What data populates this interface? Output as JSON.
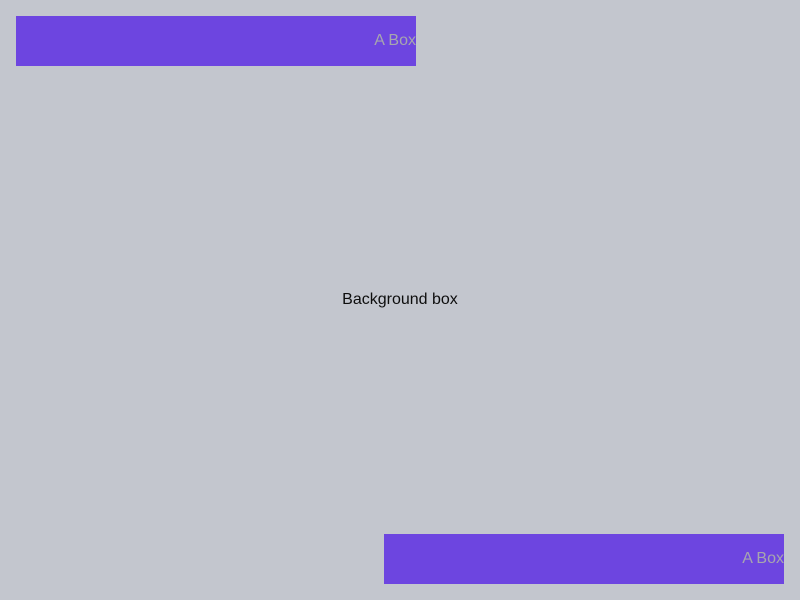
{
  "background": {
    "label": "Background box",
    "color": "#c3c6ce"
  },
  "boxes": [
    {
      "label": "A Box",
      "color": "#6d45e0"
    },
    {
      "label": "A Box",
      "color": "#6d45e0"
    }
  ]
}
